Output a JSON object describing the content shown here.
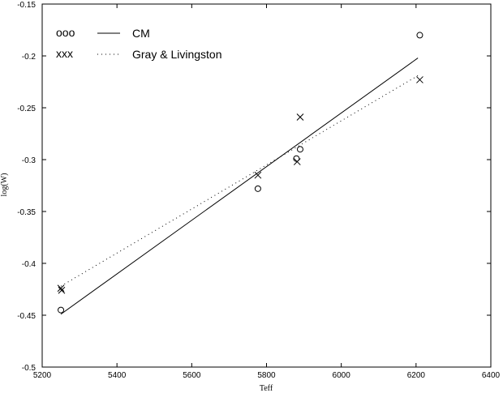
{
  "chart_data": {
    "type": "scatter",
    "title": "",
    "xlabel": "Teff",
    "ylabel": "log(W)",
    "xlim": [
      5200,
      6400
    ],
    "ylim": [
      -0.5,
      -0.15
    ],
    "xticks": [
      "5200",
      "5400",
      "5600",
      "5800",
      "6000",
      "6200",
      "6400"
    ],
    "yticks": [
      "-0.15",
      "-0.2",
      "-0.25",
      "-0.3",
      "-0.35",
      "-0.4",
      "-0.45",
      "-0.5"
    ],
    "grid": false,
    "legend_position": "top-left",
    "series": [
      {
        "name": "CM",
        "legend_marker": "ooo",
        "marker": "circle",
        "points": [
          {
            "x": 5250,
            "y": -0.445
          },
          {
            "x": 5777,
            "y": -0.328
          },
          {
            "x": 5880,
            "y": -0.299
          },
          {
            "x": 5890,
            "y": -0.29
          },
          {
            "x": 6210,
            "y": -0.18
          }
        ],
        "fit": {
          "style": "solid",
          "x": [
            5250,
            6205
          ],
          "y": [
            -0.449,
            -0.202
          ]
        }
      },
      {
        "name": "Gray & Livingston",
        "legend_marker": "xxx",
        "marker": "cross",
        "points": [
          {
            "x": 5250,
            "y": -0.424
          },
          {
            "x": 5252,
            "y": -0.426
          },
          {
            "x": 5777,
            "y": -0.315
          },
          {
            "x": 5882,
            "y": -0.302
          },
          {
            "x": 5890,
            "y": -0.259
          },
          {
            "x": 6210,
            "y": -0.223
          }
        ],
        "fit": {
          "style": "dotted",
          "x": [
            5250,
            6205
          ],
          "y": [
            -0.422,
            -0.219
          ]
        }
      }
    ]
  }
}
